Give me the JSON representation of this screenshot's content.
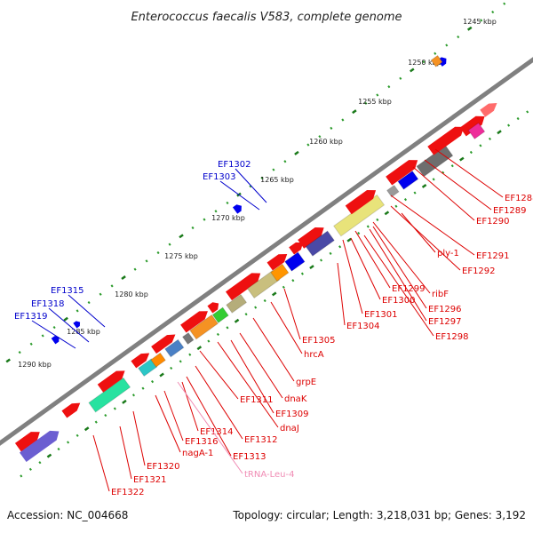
{
  "title": "Enterococcus faecalis V583, complete genome",
  "footer": {
    "accession": "Accession: NC_004668",
    "topology": "Topology: circular; Length: 3,218,031 bp; Genes: 3,192"
  },
  "colors": {
    "backbone": "#808080",
    "tick_major": "#1a7a1a",
    "tick_minor": "#2a9a2a",
    "gene_default": "#ee0000",
    "label_red": "#dd0000",
    "label_blue": "#0000cc",
    "label_pink": "#f08cb4"
  },
  "scale_ticks": [
    {
      "label": "1245 kbp"
    },
    {
      "label": "1250 kbp"
    },
    {
      "label": "1255 kbp"
    },
    {
      "label": "1260 kbp"
    },
    {
      "label": "1265 kbp"
    },
    {
      "label": "1270 kbp"
    },
    {
      "label": "1275 kbp"
    },
    {
      "label": "1280 kbp"
    },
    {
      "label": "1285 kbp"
    },
    {
      "label": "1290 kbp"
    }
  ],
  "gene_labels_inner": [
    {
      "text": "EF1288"
    },
    {
      "text": "EF1289"
    },
    {
      "text": "EF1290"
    },
    {
      "text": "EF1291"
    },
    {
      "text": "ply-1"
    },
    {
      "text": "EF1292"
    },
    {
      "text": "ribF"
    },
    {
      "text": "EF1296"
    },
    {
      "text": "EF1297"
    },
    {
      "text": "EF1298"
    },
    {
      "text": "EF1299"
    },
    {
      "text": "EF1300"
    },
    {
      "text": "EF1301"
    },
    {
      "text": "EF1304"
    },
    {
      "text": "EF1305"
    },
    {
      "text": "hrcA"
    },
    {
      "text": "grpE"
    },
    {
      "text": "dnaK"
    },
    {
      "text": "EF1309"
    },
    {
      "text": "dnaJ"
    },
    {
      "text": "EF1311"
    },
    {
      "text": "EF1312"
    },
    {
      "text": "EF1313"
    },
    {
      "text": "EF1314"
    },
    {
      "text": "EF1316"
    },
    {
      "text": "nagA-1"
    },
    {
      "text": "tRNA-Leu-4"
    },
    {
      "text": "EF1320"
    },
    {
      "text": "EF1321"
    },
    {
      "text": "EF1322"
    }
  ],
  "gene_labels_outer": [
    {
      "text": "EF1302"
    },
    {
      "text": "EF1303"
    },
    {
      "text": "EF1315"
    },
    {
      "text": "EF1318"
    },
    {
      "text": "EF1319"
    }
  ]
}
